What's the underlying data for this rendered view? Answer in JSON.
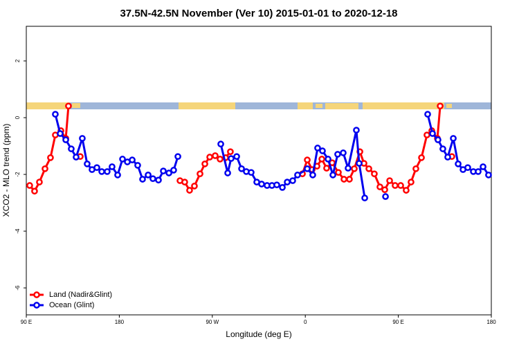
{
  "chart_data": {
    "type": "line",
    "title": "37.5N-42.5N November (Ver 10)   2015-01-01 to 2020-12-18",
    "xlabel": "Longitude (deg E)",
    "ylabel": "XCO2 - MLO trend (ppm)",
    "xlim": [
      90,
      540
    ],
    "ylim": [
      -6.95,
      3.22
    ],
    "xticks": [
      {
        "value": 90,
        "label": "90 E"
      },
      {
        "value": 180,
        "label": "180"
      },
      {
        "value": 270,
        "label": "90 W"
      },
      {
        "value": 360,
        "label": "0"
      },
      {
        "value": 450,
        "label": "90 E"
      },
      {
        "value": 540,
        "label": "180"
      }
    ],
    "yticks": [
      -6,
      -4,
      -2,
      0,
      2
    ],
    "legend": "bottom-left",
    "series": [
      {
        "name": "Land (Nadir&Glint)",
        "color": "#ff0000",
        "x": [
          93.3,
          98.0,
          102.7,
          108.1,
          113.4,
          118.1,
          123.5,
          128.2,
          130.8,
          null,
          142.2,
          null,
          238.7,
          243.3,
          248.0,
          252.7,
          258.1,
          262.8,
          267.5,
          272.8,
          277.5,
          282.9,
          287.5,
          null,
          357.2,
          361.9,
          366.6,
          371.3,
          376.0,
          380.6,
          386.0,
          392.0,
          397.4,
          402.7,
          407.4,
          412.8,
          416.8,
          421.5,
          426.8,
          432.2,
          436.9,
          441.6,
          446.9,
          452.3,
          457.6,
          462.3,
          467.0,
          472.4,
          477.7,
          482.4,
          487.8,
          490.5,
          null,
          501.8
        ],
        "values": [
          -2.39,
          -2.59,
          -2.27,
          -1.8,
          -1.41,
          -0.61,
          -0.46,
          -0.73,
          0.41,
          null,
          -1.37,
          null,
          -2.22,
          -2.27,
          -2.56,
          -2.41,
          -1.98,
          -1.63,
          -1.39,
          -1.34,
          -1.46,
          -1.41,
          -1.2,
          null,
          -1.98,
          -1.49,
          -1.83,
          -1.71,
          -1.46,
          -1.78,
          -1.59,
          -1.93,
          -2.17,
          -2.17,
          -1.8,
          -1.2,
          -1.61,
          -1.8,
          -1.98,
          -2.44,
          -2.54,
          -2.22,
          -2.39,
          -2.39,
          -2.56,
          -2.27,
          -1.8,
          -1.41,
          -0.61,
          -0.46,
          -0.73,
          0.41,
          null,
          -1.37
        ]
      },
      {
        "name": "Ocean (Glint)",
        "color": "#0000ee",
        "x": [
          118.1,
          122.8,
          128.2,
          133.5,
          138.2,
          144.2,
          148.9,
          153.6,
          158.3,
          163.0,
          168.3,
          173.0,
          178.4,
          183.1,
          187.8,
          192.5,
          197.8,
          202.5,
          207.9,
          212.5,
          217.9,
          222.6,
          228.0,
          232.6,
          236.7,
          null,
          278.2,
          284.9,
          288.2,
          293.6,
          298.3,
          302.9,
          307.6,
          313.0,
          317.7,
          323.0,
          327.7,
          332.4,
          337.8,
          342.5,
          347.8,
          352.5,
          361.9,
          367.2,
          371.9,
          376.6,
          382.0,
          386.7,
          391.3,
          396.7,
          401.4,
          409.4,
          412.1,
          417.5,
          null,
          437.6,
          null,
          478.4,
          483.1,
          488.4,
          493.1,
          497.8,
          503.2,
          507.9,
          512.6,
          517.2,
          522.6,
          527.3,
          532.0,
          537.3
        ],
        "values": [
          0.12,
          -0.56,
          -0.78,
          -1.1,
          -1.39,
          -0.73,
          -1.63,
          -1.83,
          -1.76,
          -1.9,
          -1.9,
          -1.73,
          -2.02,
          -1.46,
          -1.56,
          -1.49,
          -1.68,
          -2.17,
          -2.02,
          -2.15,
          -2.2,
          -1.88,
          -1.95,
          -1.85,
          -1.37,
          null,
          -0.93,
          -1.95,
          -1.44,
          -1.37,
          -1.8,
          -1.9,
          -1.93,
          -2.27,
          -2.34,
          -2.39,
          -2.39,
          -2.37,
          -2.46,
          -2.27,
          -2.22,
          -2.02,
          -1.8,
          -2.02,
          -1.07,
          -1.17,
          -1.46,
          -2.02,
          -1.29,
          -1.24,
          -1.78,
          -0.44,
          -1.61,
          -2.83,
          null,
          -2.78,
          null,
          0.12,
          -0.56,
          -0.78,
          -1.1,
          -1.39,
          -0.73,
          -1.63,
          -1.83,
          -1.76,
          -1.9,
          -1.9,
          -1.73,
          -2.02
        ]
      }
    ]
  }
}
